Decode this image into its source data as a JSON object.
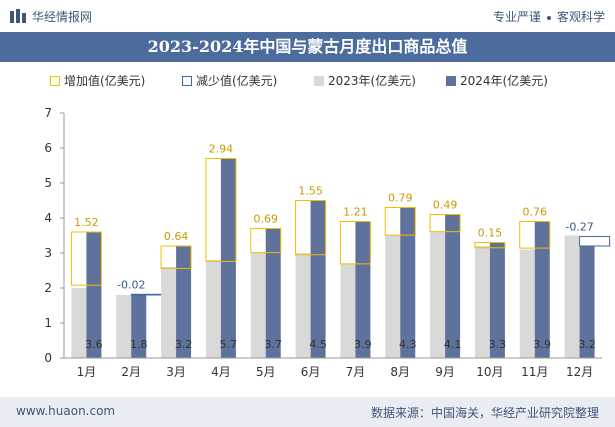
{
  "header": {
    "brand": "华经情报网",
    "slogan_left": "专业严谨",
    "slogan_right": "客观科学"
  },
  "chart_data": {
    "type": "bar",
    "title": "2023-2024年中国与蒙古月度出口商品总值",
    "categories": [
      "1月",
      "2月",
      "3月",
      "4月",
      "5月",
      "6月",
      "7月",
      "8月",
      "9月",
      "10月",
      "11月",
      "12月"
    ],
    "series": [
      {
        "name": "2023年(亿美元)",
        "values": [
          2.0,
          1.8,
          2.6,
          2.8,
          3.0,
          3.0,
          2.7,
          3.5,
          3.6,
          3.2,
          3.1,
          3.5
        ]
      },
      {
        "name": "2024年(亿美元)",
        "values": [
          3.6,
          1.8,
          3.2,
          5.7,
          3.7,
          4.5,
          3.9,
          4.3,
          4.1,
          3.3,
          3.9,
          3.2
        ]
      }
    ],
    "change": {
      "increase_name": "增加值(亿美元)",
      "decrease_name": "减少值(亿美元)",
      "labels": [
        "1.52",
        "-0.02",
        "0.64",
        "2.94",
        "0.69",
        "1.55",
        "1.21",
        "0.79",
        "0.49",
        "0.15",
        "0.76",
        "-0.27"
      ],
      "values": [
        1.52,
        -0.02,
        0.64,
        2.94,
        0.69,
        1.55,
        1.21,
        0.79,
        0.49,
        0.15,
        0.76,
        -0.27
      ]
    },
    "value_labels_2024": [
      "3.6",
      "1.8",
      "3.2",
      "5.7",
      "3.7",
      "4.5",
      "3.9",
      "4.3",
      "4.1",
      "3.3",
      "3.9",
      "3.2"
    ],
    "yticks": [
      "0",
      "1",
      "2",
      "3",
      "4",
      "5",
      "6",
      "7"
    ],
    "ylim": [
      0,
      7
    ],
    "legend_placement": "top-left",
    "grid": false,
    "colors": {
      "y2023": "#d9d9d9",
      "y2024": "#5e729c",
      "increase": "#f0bf00",
      "decrease": "#3d6aa6"
    }
  },
  "footer": {
    "website": "www.huaon.com",
    "source": "数据来源：中国海关，华经产业研究院整理"
  }
}
